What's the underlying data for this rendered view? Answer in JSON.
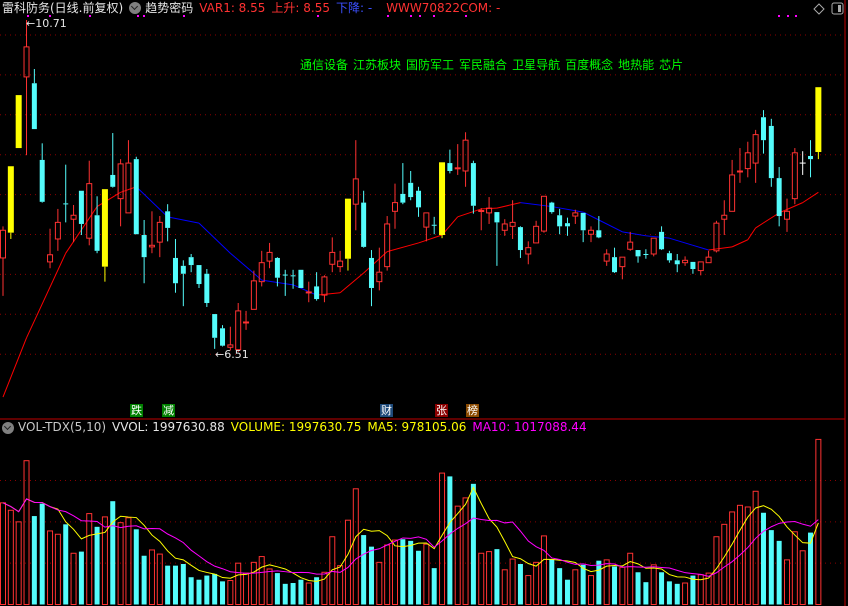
{
  "header": {
    "stock_name": "雷科防务(日线.前复权)",
    "indicator_name": "趋势密码",
    "var1": "VAR1: 8.55",
    "rise": "上升: 8.55",
    "fall": "下降: -",
    "www": "WWW70822COM: -"
  },
  "sector_tags": [
    "通信设备",
    "江苏板块",
    "国防军工",
    "军民融合",
    "卫星导航",
    "百度概念",
    "地热能",
    "芯片"
  ],
  "signal_labels": [
    {
      "text": "跌",
      "color": "#008000"
    },
    {
      "text": "减",
      "color": "#008000"
    },
    {
      "text": "财",
      "color": "#1e4a7a"
    },
    {
      "text": "张",
      "color": "#8b0000"
    },
    {
      "text": "榜",
      "color": "#8b4a00"
    }
  ],
  "volume_header": {
    "name": "VOL-TDX(5,10)",
    "vvol": "VVOL: 1997630.88",
    "volume": "VOLUME: 1997630.75",
    "ma5": "MA5: 978105.06",
    "ma10": "MA10: 1017088.44"
  },
  "icons": {
    "top_right": [
      "diamond-icon",
      "panel-toggle-icon"
    ],
    "header": "chevron-circle-icon"
  },
  "colors": {
    "up": "#ff3232",
    "down": "#54fcfc",
    "flat": "#ffffff",
    "signal": "#ffff00",
    "ma_rise": "#ff0000",
    "ma_fall": "#0000ff",
    "vol_ma5": "#ffff00",
    "vol_ma10": "#ff00ff",
    "grid": "#8b0000"
  },
  "chart_data": {
    "type": "candlestick",
    "high_label": "10.71",
    "low_label": "6.51",
    "price_range": [
      5.9,
      10.75
    ],
    "signal_indices": [
      1,
      2,
      13,
      44,
      56,
      104
    ],
    "ohlc": [
      [
        7.7,
        8.1,
        7.22,
        8.05
      ],
      [
        8.02,
        8.86,
        7.94,
        8.86
      ],
      [
        9.09,
        9.76,
        9.09,
        9.76
      ],
      [
        9.99,
        10.71,
        9.0,
        10.37
      ],
      [
        9.91,
        10.09,
        9.33,
        9.33
      ],
      [
        8.94,
        9.15,
        8.4,
        8.41
      ],
      [
        7.65,
        8.07,
        7.57,
        7.74
      ],
      [
        7.94,
        8.32,
        7.79,
        8.15
      ],
      [
        8.39,
        8.88,
        8.15,
        8.38
      ],
      [
        8.19,
        8.37,
        7.9,
        8.24
      ],
      [
        8.55,
        8.55,
        7.99,
        8.13
      ],
      [
        7.95,
        8.93,
        7.86,
        8.64
      ],
      [
        8.24,
        8.48,
        7.76,
        7.79
      ],
      [
        7.59,
        8.57,
        7.4,
        8.57
      ],
      [
        8.75,
        9.28,
        8.59,
        8.6
      ],
      [
        8.45,
        8.95,
        8.1,
        8.89
      ],
      [
        8.27,
        9.19,
        8.27,
        8.9
      ],
      [
        8.95,
        8.98,
        8.0,
        8.0
      ],
      [
        7.99,
        8.18,
        7.38,
        7.71
      ],
      [
        7.84,
        8.29,
        7.76,
        7.86
      ],
      [
        7.9,
        8.23,
        7.71,
        8.15
      ],
      [
        8.29,
        8.38,
        7.91,
        8.08
      ],
      [
        7.7,
        7.94,
        7.26,
        7.38
      ],
      [
        7.6,
        7.67,
        7.09,
        7.5
      ],
      [
        7.71,
        7.75,
        7.52,
        7.61
      ],
      [
        7.61,
        7.61,
        7.32,
        7.37
      ],
      [
        7.5,
        7.56,
        7.08,
        7.13
      ],
      [
        6.99,
        6.99,
        6.55,
        6.69
      ],
      [
        6.81,
        6.85,
        6.58,
        6.59
      ],
      [
        6.57,
        6.83,
        6.53,
        6.6
      ],
      [
        6.54,
        7.13,
        6.51,
        7.03
      ],
      [
        6.88,
        7.03,
        6.79,
        6.89
      ],
      [
        7.05,
        7.54,
        7.05,
        7.41
      ],
      [
        7.4,
        7.79,
        7.34,
        7.64
      ],
      [
        7.66,
        7.89,
        7.57,
        7.77
      ],
      [
        7.7,
        7.71,
        7.34,
        7.45
      ],
      [
        7.49,
        7.55,
        7.22,
        7.48
      ],
      [
        7.48,
        7.55,
        7.31,
        7.47
      ],
      [
        7.55,
        7.55,
        7.32,
        7.32
      ],
      [
        7.26,
        7.4,
        7.14,
        7.27
      ],
      [
        7.34,
        7.52,
        7.16,
        7.18
      ],
      [
        7.23,
        7.48,
        7.14,
        7.46
      ],
      [
        7.62,
        7.96,
        7.52,
        7.77
      ],
      [
        7.59,
        7.79,
        7.52,
        7.66
      ],
      [
        7.69,
        8.45,
        7.54,
        8.45
      ],
      [
        8.38,
        9.19,
        8.05,
        8.7
      ],
      [
        8.4,
        8.55,
        7.83,
        7.84
      ],
      [
        7.7,
        7.8,
        7.09,
        7.32
      ],
      [
        7.4,
        7.83,
        7.29,
        7.52
      ],
      [
        7.59,
        8.23,
        7.54,
        8.13
      ],
      [
        8.29,
        8.64,
        8.07,
        8.4
      ],
      [
        8.51,
        8.9,
        8.38,
        8.4
      ],
      [
        8.65,
        8.8,
        8.43,
        8.47
      ],
      [
        8.55,
        8.6,
        8.22,
        8.34
      ],
      [
        8.09,
        8.27,
        7.91,
        8.27
      ],
      [
        8.12,
        8.22,
        8.0,
        8.11
      ],
      [
        7.99,
        8.91,
        7.95,
        8.91
      ],
      [
        8.9,
        9.07,
        8.77,
        8.8
      ],
      [
        8.83,
        9.14,
        8.75,
        8.84
      ],
      [
        8.8,
        9.29,
        8.6,
        9.19
      ],
      [
        8.9,
        8.93,
        8.26,
        8.36
      ],
      [
        8.29,
        8.33,
        8.05,
        8.3
      ],
      [
        8.27,
        8.47,
        8.13,
        8.33
      ],
      [
        8.28,
        8.28,
        7.6,
        8.15
      ],
      [
        8.05,
        8.19,
        7.98,
        8.13
      ],
      [
        8.1,
        8.43,
        7.94,
        8.15
      ],
      [
        8.09,
        8.1,
        7.7,
        7.8
      ],
      [
        7.75,
        7.91,
        7.62,
        7.83
      ],
      [
        7.89,
        8.17,
        7.89,
        8.1
      ],
      [
        8.04,
        8.48,
        8.02,
        8.48
      ],
      [
        8.4,
        8.41,
        8.26,
        8.28
      ],
      [
        8.24,
        8.32,
        8.0,
        8.1
      ],
      [
        8.14,
        8.21,
        7.98,
        8.1
      ],
      [
        8.23,
        8.31,
        8.13,
        8.27
      ],
      [
        8.27,
        8.27,
        7.9,
        8.05
      ],
      [
        8.0,
        8.1,
        7.9,
        8.05
      ],
      [
        8.05,
        8.23,
        7.95,
        7.96
      ],
      [
        7.66,
        7.81,
        7.6,
        7.75
      ],
      [
        7.71,
        7.83,
        7.51,
        7.52
      ],
      [
        7.59,
        7.71,
        7.43,
        7.71
      ],
      [
        7.81,
        8.03,
        7.79,
        7.9
      ],
      [
        7.8,
        7.8,
        7.64,
        7.72
      ],
      [
        7.75,
        7.81,
        7.69,
        7.74
      ],
      [
        7.75,
        7.95,
        7.72,
        7.95
      ],
      [
        8.03,
        8.1,
        7.8,
        7.81
      ],
      [
        7.76,
        7.79,
        7.64,
        7.67
      ],
      [
        7.67,
        7.75,
        7.52,
        7.62
      ],
      [
        7.64,
        7.72,
        7.6,
        7.67
      ],
      [
        7.65,
        7.65,
        7.5,
        7.56
      ],
      [
        7.54,
        7.65,
        7.48,
        7.65
      ],
      [
        7.64,
        7.79,
        7.64,
        7.71
      ],
      [
        7.79,
        8.17,
        7.77,
        8.14
      ],
      [
        8.19,
        8.43,
        7.99,
        8.24
      ],
      [
        8.29,
        8.94,
        8.29,
        8.75
      ],
      [
        8.79,
        9.09,
        8.65,
        8.8
      ],
      [
        8.83,
        9.17,
        8.72,
        9.03
      ],
      [
        8.9,
        9.32,
        8.65,
        9.26
      ],
      [
        9.48,
        9.57,
        9.02,
        9.19
      ],
      [
        9.37,
        9.46,
        8.6,
        8.71
      ],
      [
        8.71,
        8.85,
        8.1,
        8.23
      ],
      [
        8.19,
        8.45,
        8.03,
        8.29
      ],
      [
        8.45,
        9.09,
        8.38,
        9.03
      ],
      [
        8.9,
        9.05,
        8.75,
        8.9
      ],
      [
        8.99,
        9.19,
        8.72,
        8.95
      ],
      [
        9.04,
        9.86,
        8.95,
        9.86
      ]
    ],
    "trend_line": [
      [
        0,
        5.94
      ],
      [
        3,
        6.69
      ],
      [
        8,
        7.76
      ],
      [
        12,
        8.35
      ],
      [
        15,
        8.53
      ],
      [
        17,
        8.6
      ],
      [
        21,
        8.22
      ],
      [
        25,
        8.14
      ],
      [
        29,
        7.76
      ],
      [
        33,
        7.42
      ],
      [
        37,
        7.36
      ],
      [
        40,
        7.23
      ],
      [
        43,
        7.26
      ],
      [
        46,
        7.51
      ],
      [
        49,
        7.78
      ],
      [
        53,
        7.89
      ],
      [
        56,
        7.99
      ],
      [
        58,
        8.22
      ],
      [
        61,
        8.32
      ],
      [
        63,
        8.33
      ],
      [
        66,
        8.4
      ],
      [
        70,
        8.35
      ],
      [
        74,
        8.28
      ],
      [
        76,
        8.18
      ],
      [
        79,
        8.03
      ],
      [
        82,
        7.98
      ],
      [
        85,
        7.95
      ],
      [
        88,
        7.86
      ],
      [
        90,
        7.8
      ],
      [
        93,
        7.84
      ],
      [
        95,
        7.93
      ],
      [
        96,
        8.08
      ],
      [
        99,
        8.27
      ],
      [
        102,
        8.4
      ],
      [
        104,
        8.53
      ]
    ],
    "volume": [
      1230000,
      1140000,
      1000000,
      1740000,
      1070000,
      1220000,
      890000,
      850000,
      970000,
      620000,
      640000,
      1100000,
      940000,
      1060000,
      1250000,
      990000,
      1050000,
      910000,
      590000,
      660000,
      610000,
      470000,
      470000,
      490000,
      330000,
      300000,
      350000,
      370000,
      280000,
      290000,
      500000,
      380000,
      510000,
      580000,
      430000,
      380000,
      250000,
      260000,
      300000,
      260000,
      330000,
      390000,
      820000,
      470000,
      1020000,
      1400000,
      840000,
      700000,
      510000,
      720000,
      780000,
      790000,
      770000,
      650000,
      730000,
      440000,
      1590000,
      1550000,
      1190000,
      1290000,
      1460000,
      620000,
      640000,
      670000,
      420000,
      550000,
      490000,
      350000,
      510000,
      830000,
      550000,
      440000,
      300000,
      420000,
      480000,
      350000,
      530000,
      540000,
      460000,
      450000,
      620000,
      390000,
      270000,
      480000,
      390000,
      280000,
      250000,
      260000,
      350000,
      360000,
      380000,
      820000,
      970000,
      1120000,
      1200000,
      1180000,
      1370000,
      1110000,
      900000,
      770000,
      540000,
      880000,
      650000,
      870000,
      1997630.75
    ],
    "volume_ma_periods": [
      5,
      10
    ],
    "volume_grid": [
      500000,
      1000000,
      1500000
    ]
  }
}
